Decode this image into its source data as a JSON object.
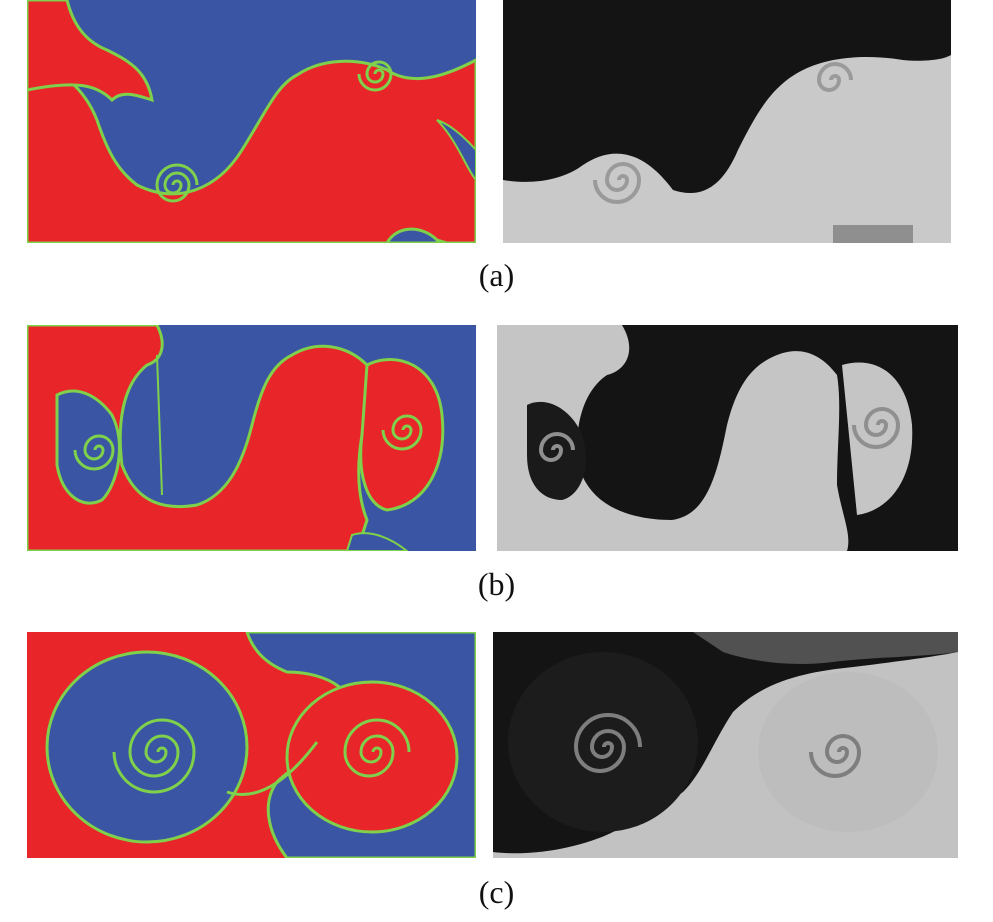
{
  "figure": {
    "rows": [
      {
        "caption": "(a)",
        "simulation_icon": "colour-contour-vortex-pair",
        "experiment_icon": "grayscale-photo-vortex-pair"
      },
      {
        "caption": "(b)",
        "simulation_icon": "colour-contour-vortex-pair",
        "experiment_icon": "grayscale-photo-vortex-pair"
      },
      {
        "caption": "(c)",
        "simulation_icon": "colour-contour-mixed-vortices",
        "experiment_icon": "grayscale-photo-mixed-vortices"
      }
    ],
    "colors": {
      "fluid_a": "#e8262a",
      "fluid_b": "#3a55a4",
      "interface": "#7fd04a",
      "photo_dark": "#141414",
      "photo_light": "#c9c9c9"
    }
  }
}
